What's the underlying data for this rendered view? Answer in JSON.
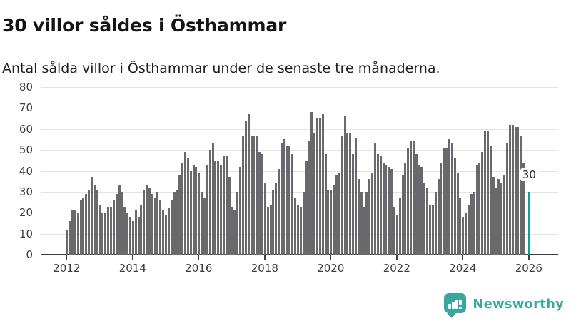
{
  "header": {
    "title": "30 villor såldes i Östhammar",
    "subtitle": "Antal sålda villor i Östhammar under de senaste tre månaderna."
  },
  "chart_data": {
    "type": "bar",
    "title": "30 villor såldes i Östhammar",
    "subtitle": "Antal sålda villor i Östhammar under de senaste tre månaderna.",
    "frequency": "monthly",
    "x_start_year": 2012,
    "x_tick_labels": [
      "2012",
      "2014",
      "2016",
      "2018",
      "2020",
      "2022",
      "2024",
      "2026"
    ],
    "y_ticks": [
      0,
      10,
      20,
      30,
      40,
      50,
      60,
      70,
      80
    ],
    "ylim": [
      0,
      80
    ],
    "grid": true,
    "values": [
      12,
      16,
      21,
      21,
      20,
      26,
      27,
      29,
      31,
      37,
      33,
      31,
      24,
      20,
      20,
      23,
      23,
      26,
      29,
      33,
      30,
      23,
      20,
      18,
      16,
      21,
      18,
      24,
      31,
      33,
      32,
      29,
      27,
      30,
      26,
      21,
      19,
      22,
      26,
      30,
      31,
      38,
      44,
      49,
      46,
      40,
      43,
      42,
      39,
      30,
      27,
      43,
      50,
      53,
      45,
      45,
      43,
      47,
      47,
      37,
      23,
      21,
      30,
      42,
      57,
      64,
      67,
      57,
      57,
      57,
      49,
      48,
      34,
      23,
      24,
      31,
      34,
      41,
      53,
      55,
      52,
      52,
      48,
      27,
      24,
      23,
      30,
      45,
      54,
      68,
      58,
      65,
      65,
      67,
      48,
      31,
      31,
      33,
      38,
      39,
      57,
      66,
      58,
      58,
      48,
      56,
      36,
      30,
      23,
      30,
      36,
      39,
      53,
      48,
      47,
      44,
      43,
      42,
      41,
      23,
      19,
      27,
      38,
      44,
      51,
      54,
      54,
      48,
      43,
      42,
      34,
      32,
      24,
      24,
      30,
      36,
      44,
      51,
      51,
      55,
      53,
      46,
      39,
      27,
      18,
      20,
      24,
      29,
      30,
      43,
      44,
      49,
      59,
      59,
      52,
      37,
      32,
      36,
      34,
      38,
      53,
      62,
      62,
      61,
      61,
      57,
      44,
      null,
      30
    ],
    "highlight": {
      "index": 168,
      "value": 30,
      "label": "30"
    },
    "colors": {
      "bar": "#68686d",
      "highlight": "#0a9e9c",
      "grid": "#e3e3e3",
      "axis": "#3f3f3f",
      "tick_label": "#3c3c3c"
    }
  },
  "footer": {
    "brand": "Newsworthy",
    "brand_color": "#3aa79f",
    "logo_icon": "bar-chart-speech-bubble"
  }
}
